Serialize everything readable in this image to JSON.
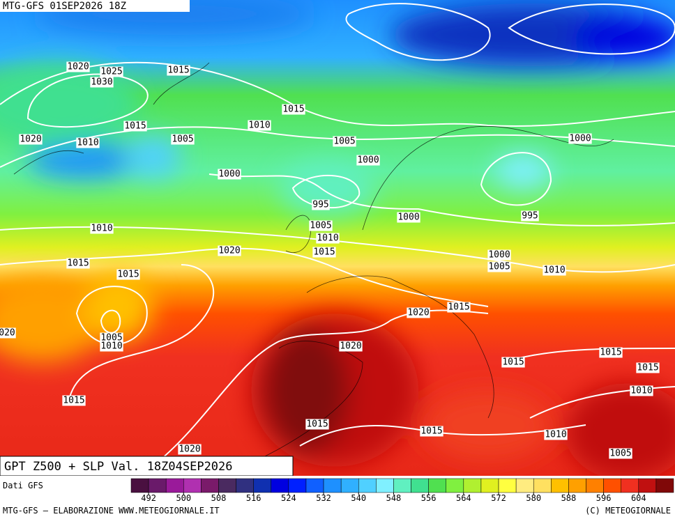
{
  "header": {
    "title": "MTG-GFS 01SEP2026 18Z"
  },
  "map": {
    "isobar_labels": [
      "1020",
      "1025",
      "1015",
      "1030",
      "1015",
      "1010",
      "1015",
      "1020",
      "1010",
      "1005",
      "1005",
      "1000",
      "1000",
      "1000",
      "995",
      "1000",
      "995",
      "1005",
      "1010",
      "1010",
      "1020",
      "1015",
      "1000",
      "1015",
      "1005",
      "1010",
      "1015",
      "1020",
      "1015",
      "1005",
      "1010",
      "020",
      "1020",
      "1015",
      "1015",
      "1015",
      "1010",
      "1015",
      "1015",
      "1015",
      "1010",
      "1020",
      "1005"
    ]
  },
  "footer": {
    "map_title": "GPT Z500 + SLP Val. 18Z04SEP2026",
    "source": "Dati GFS",
    "credit_left": "MTG-GFS — ELABORAZIONE WWW.METEOGIORNALE.IT",
    "credit_right": "(C) METEOGIORNALE"
  },
  "legend": {
    "ticks": [
      492,
      500,
      508,
      516,
      524,
      532,
      540,
      548,
      556,
      564,
      572,
      580,
      588,
      596,
      604
    ],
    "colors": [
      "#4a1040",
      "#6a1a6a",
      "#9a1a9a",
      "#b030b0",
      "#7a1a6a",
      "#4a2a60",
      "#303080",
      "#1030b0",
      "#0000e0",
      "#0020ff",
      "#1060ff",
      "#1e90ff",
      "#30b0ff",
      "#50d0ff",
      "#80f0ff",
      "#60f0c0",
      "#40e090",
      "#50e050",
      "#80f040",
      "#b0f030",
      "#e0f020",
      "#ffff40",
      "#ffec80",
      "#ffe060",
      "#ffc000",
      "#ffa000",
      "#ff8000",
      "#ff5000",
      "#f03020",
      "#c01010",
      "#800808"
    ]
  }
}
